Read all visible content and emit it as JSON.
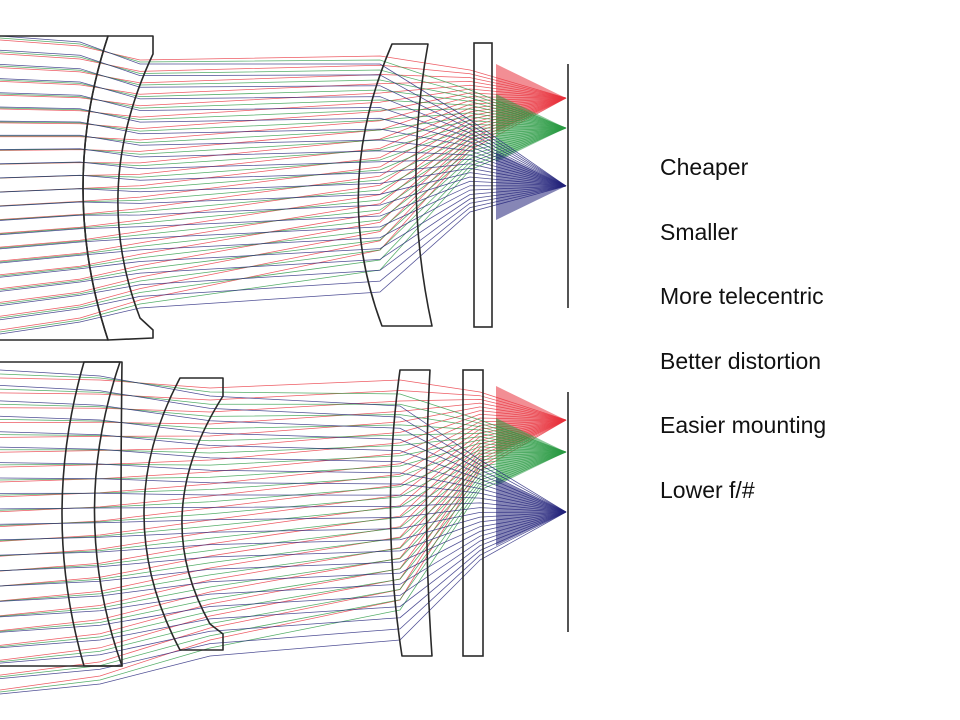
{
  "colors": {
    "ray_red": "#e8323c",
    "ray_green": "#2a9a44",
    "ray_blue": "#23237a",
    "lens_outline": "#2a2a2a",
    "text": "#111111"
  },
  "benefits": [
    "Cheaper",
    "Smaller",
    "More telecentric",
    "Better distortion",
    "Easier mounting",
    "Lower f/#"
  ]
}
